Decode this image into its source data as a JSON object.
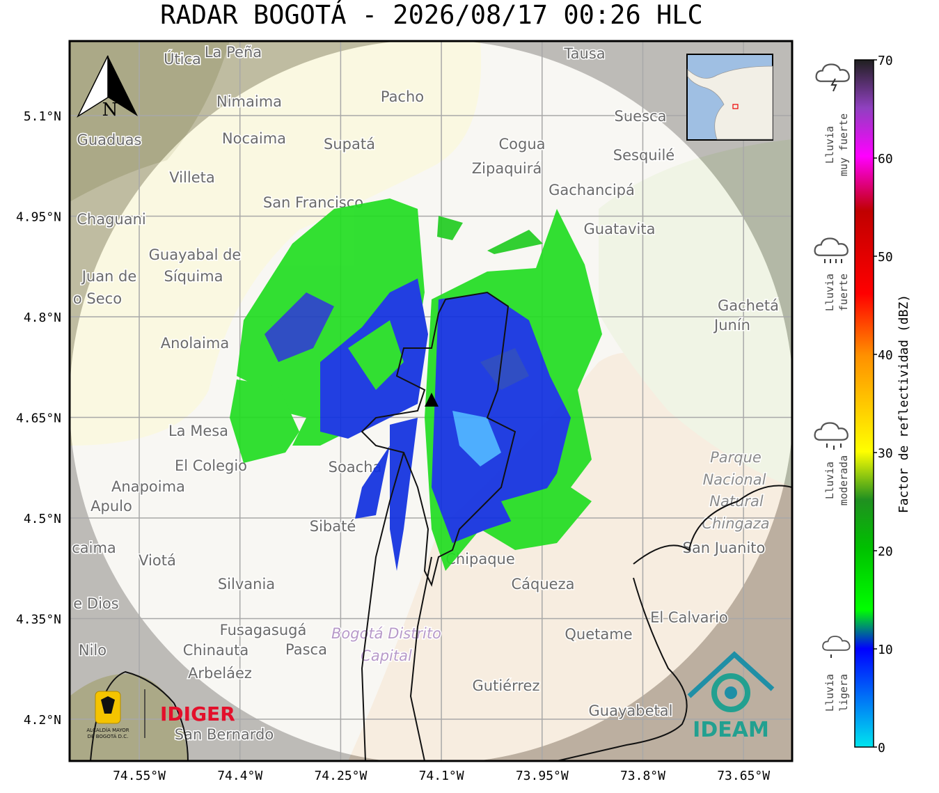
{
  "title": "RADAR BOGOTÁ - 2026/08/17 00:26 HLC",
  "map": {
    "north": "N",
    "latlim": [
      4.1377,
      5.2111
    ],
    "lonlim": [
      -74.6537,
      -73.5776
    ],
    "lat_ticks": [
      {
        "value": 5.1,
        "label": "5.1°N"
      },
      {
        "value": 4.95,
        "label": "4.95°N"
      },
      {
        "value": 4.8,
        "label": "4.8°N"
      },
      {
        "value": 4.65,
        "label": "4.65°N"
      },
      {
        "value": 4.5,
        "label": "4.5°N"
      },
      {
        "value": 4.35,
        "label": "4.35°N"
      },
      {
        "value": 4.2,
        "label": "4.2°N"
      }
    ],
    "lon_ticks": [
      {
        "value": -74.55,
        "label": "74.55°W"
      },
      {
        "value": -74.4,
        "label": "74.4°W"
      },
      {
        "value": -74.25,
        "label": "74.25°W"
      },
      {
        "value": -74.1,
        "label": "74.1°W"
      },
      {
        "value": -73.95,
        "label": "73.95°W"
      },
      {
        "value": -73.8,
        "label": "73.8°W"
      },
      {
        "value": -73.65,
        "label": "73.65°W"
      }
    ],
    "places": [
      "Útica",
      "La Peña",
      "Tausa",
      "Pacho",
      "Nimaima",
      "Suesca",
      "Guaduas",
      "Nocaima",
      "Supatá",
      "Cogua",
      "Sesquilé",
      "Zipaquirá",
      "Villeta",
      "Gachancipá",
      "San Francisco",
      "Chaguani",
      "Guatavita",
      "Guayabal de",
      "Síquima",
      "Juan de",
      "o Seco",
      "Gachetá",
      "Junín",
      "Anolaima",
      "La Mesa",
      "El Colegio",
      "Soacha",
      "Anapoima",
      "Apulo",
      "Sibaté",
      "Parque",
      "Nacional",
      "Natural",
      "Chingaza",
      "San Juanito",
      "caima",
      "Viotá",
      "Chipaque",
      "Cáqueza",
      "Silvania",
      "e Dios",
      "El Calvario",
      "Fusagasugá",
      "Quetame",
      "Bogotá Distrito",
      "Capital",
      "Chinauta",
      "Pasca",
      "Nilo",
      "Arbeláez",
      "Gutiérrez",
      "Guayabetal",
      "San Bernardo"
    ]
  },
  "intensity": [
    [
      "Lluvia",
      "muy fuerte"
    ],
    [
      "Lluvia",
      "fuerte"
    ],
    [
      "Lluvia",
      "moderada"
    ],
    [
      "Lluvia",
      "ligera"
    ]
  ],
  "colorbar": {
    "label": "Factor de reflectividad (dBZ)",
    "lim": [
      0,
      70
    ],
    "ticks": [
      0,
      10,
      20,
      30,
      40,
      50,
      60,
      70
    ]
  },
  "logos": {
    "alcaldia": [
      "ALCALDÍA MAYOR",
      "DE BOGOTÁ D.C."
    ],
    "idiger": "IDIGER",
    "ideam": "IDEAM"
  }
}
